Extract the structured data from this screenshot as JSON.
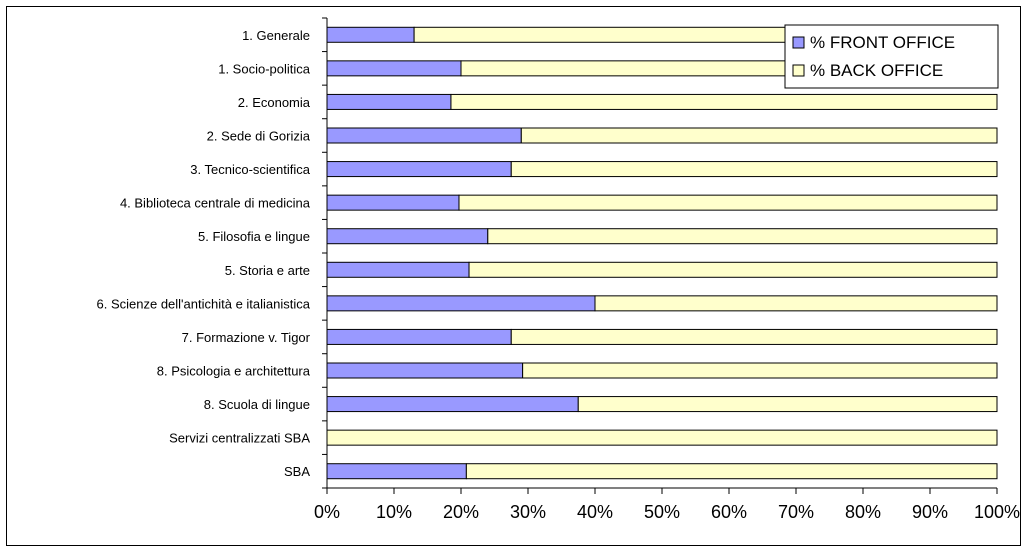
{
  "chart_data": {
    "type": "bar",
    "orientation": "horizontal",
    "stacked": true,
    "categories": [
      "1. Generale",
      "1. Socio-politica",
      "2. Economia",
      "2. Sede di Gorizia",
      "3. Tecnico-scientifica",
      "4. Biblioteca centrale di medicina",
      "5. Filosofia e lingue",
      "5. Storia e arte",
      "6. Scienze dell'antichità e italianistica",
      "7. Formazione v. Tigor",
      "8. Psicologia e architettura",
      "8. Scuola di lingue",
      "Servizi centralizzati SBA",
      "SBA"
    ],
    "series": [
      {
        "name": "% FRONT OFFICE",
        "color": "#9999ff",
        "values": [
          13,
          20,
          18.5,
          29,
          27.5,
          19.7,
          24,
          21.2,
          40,
          27.5,
          29.2,
          37.5,
          0,
          20.8
        ]
      },
      {
        "name": "% BACK OFFICE",
        "color": "#ffffcc",
        "values": [
          87,
          80,
          81.5,
          71,
          72.5,
          80.3,
          76,
          78.8,
          60,
          72.5,
          70.8,
          62.5,
          100,
          79.2
        ]
      }
    ],
    "xlim": [
      0,
      100
    ],
    "x_ticks": [
      "0%",
      "10%",
      "20%",
      "30%",
      "40%",
      "50%",
      "60%",
      "70%",
      "80%",
      "90%",
      "100%"
    ],
    "legend_position": "top-right",
    "grid": false
  }
}
